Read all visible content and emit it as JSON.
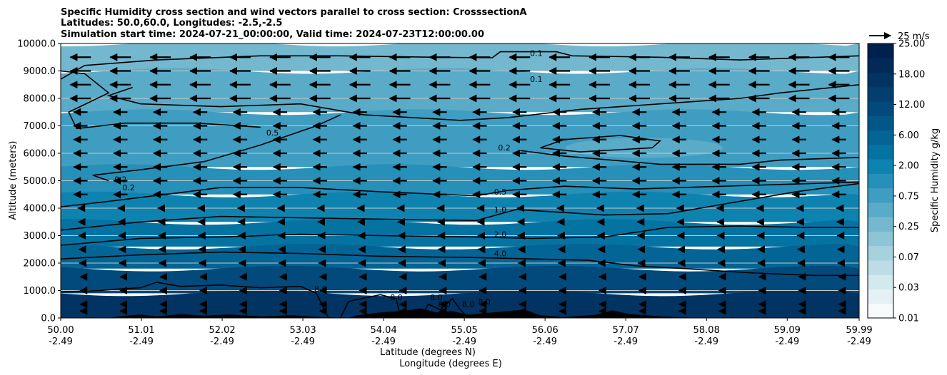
{
  "chart_data": {
    "type": "contour",
    "title_lines": [
      "Specific Humidity cross section and wind vectors parallel to cross section: CrosssectionA",
      "Latitudes: 50.0,60.0, Longitudes: -2.5,-2.5",
      "Simulation start time: 2024-07-21_00:00:00, Valid time: 2024-07-23T12:00:00.00"
    ],
    "ylabel": "Altitude (meters)",
    "xlabel_lat": "Latitude (degrees N)",
    "xlabel_lon": "Longitude (degrees E)",
    "xlim": [
      50.0,
      59.99
    ],
    "ylim": [
      0,
      10000
    ],
    "x_ticks": [
      {
        "value": 50.0,
        "lat": "50.00",
        "lon": "-2.49"
      },
      {
        "value": 51.01,
        "lat": "51.01",
        "lon": "-2.49"
      },
      {
        "value": 52.02,
        "lat": "52.02",
        "lon": "-2.49"
      },
      {
        "value": 53.03,
        "lat": "53.03",
        "lon": "-2.49"
      },
      {
        "value": 54.04,
        "lat": "54.04",
        "lon": "-2.49"
      },
      {
        "value": 55.05,
        "lat": "55.05",
        "lon": "-2.49"
      },
      {
        "value": 56.06,
        "lat": "56.06",
        "lon": "-2.49"
      },
      {
        "value": 57.07,
        "lat": "57.07",
        "lon": "-2.49"
      },
      {
        "value": 58.08,
        "lat": "58.08",
        "lon": "-2.49"
      },
      {
        "value": 59.09,
        "lat": "59.09",
        "lon": "-2.49"
      },
      {
        "value": 59.99,
        "lat": "59.99",
        "lon": "-2.49"
      }
    ],
    "y_ticks": [
      {
        "value": 0,
        "label": "0.0"
      },
      {
        "value": 1000,
        "label": "1000.0"
      },
      {
        "value": 2000,
        "label": "2000.0"
      },
      {
        "value": 3000,
        "label": "3000.0"
      },
      {
        "value": 4000,
        "label": "4000.0"
      },
      {
        "value": 5000,
        "label": "5000.0"
      },
      {
        "value": 6000,
        "label": "6000.0"
      },
      {
        "value": 7000,
        "label": "7000.0"
      },
      {
        "value": 8000,
        "label": "8000.0"
      },
      {
        "value": 9000,
        "label": "9000.0"
      },
      {
        "value": 10000,
        "label": "10000.0"
      }
    ],
    "colorbar": {
      "label": "Specific Humidity g/kg",
      "tick_labels": [
        "0.01",
        "0.03",
        "0.07",
        "0.25",
        "0.75",
        "2.00",
        "6.00",
        "12.00",
        "18.00",
        "25.00"
      ],
      "levels": [
        0.01,
        0.02,
        0.03,
        0.05,
        0.07,
        0.1,
        0.25,
        0.5,
        0.75,
        1.0,
        2.0,
        4.0,
        6.0,
        8.0,
        12.0,
        15.0,
        18.0,
        20.0,
        25.0
      ],
      "colors": [
        "#f7fbfc",
        "#e4f1f4",
        "#d2e9ee",
        "#bcdde6",
        "#a6d2dd",
        "#8ec5d6",
        "#74b8cf",
        "#5aabc8",
        "#3f9dc1",
        "#2690b9",
        "#0f83b0",
        "#0573a2",
        "#036595",
        "#035788",
        "#024a7b",
        "#023f6e",
        "#013463",
        "#012a58",
        "#00204d"
      ]
    },
    "wind_reference": {
      "label": "25 m/s",
      "speed": 25
    },
    "contours": [
      {
        "label": "0.1",
        "x": 55.95,
        "y": 9550
      },
      {
        "label": "0.1",
        "x": 55.95,
        "y": 8600
      },
      {
        "label": "0.5",
        "x": 52.65,
        "y": 6650
      },
      {
        "label": "0.2",
        "x": 55.55,
        "y": 6100
      },
      {
        "label": "0.2",
        "x": 50.75,
        "y": 4950
      },
      {
        "label": "0.2",
        "x": 50.85,
        "y": 4650
      },
      {
        "label": "0.5",
        "x": 55.5,
        "y": 4500
      },
      {
        "label": "1.0",
        "x": 55.5,
        "y": 3850
      },
      {
        "label": "2.0",
        "x": 55.5,
        "y": 2950
      },
      {
        "label": "4.0",
        "x": 55.5,
        "y": 2250
      },
      {
        "label": "8.0",
        "x": 53.25,
        "y": 950
      },
      {
        "label": "8.0",
        "x": 54.2,
        "y": 650
      },
      {
        "label": "8.0",
        "x": 54.7,
        "y": 650
      },
      {
        "label": "8.0",
        "x": 54.8,
        "y": 400
      },
      {
        "label": "8.0",
        "x": 55.1,
        "y": 400
      },
      {
        "label": "8.0",
        "x": 55.3,
        "y": 500
      }
    ],
    "vectors": {
      "x_count": 20,
      "levels_m": [
        250,
        500,
        1000,
        1500,
        2000,
        2500,
        3000,
        3500,
        4000,
        4500,
        5000,
        5500,
        6000,
        6500,
        7000,
        7500,
        8000,
        8500,
        9000,
        9500
      ],
      "upper_speed": 24,
      "mid_speed": 16,
      "low_speed": 6
    }
  }
}
